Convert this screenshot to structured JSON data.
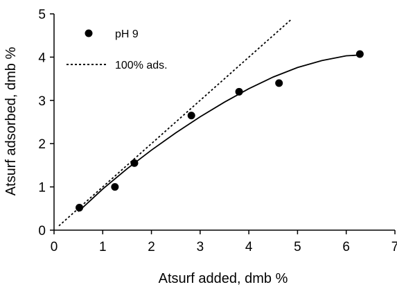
{
  "chart_data": {
    "type": "scatter",
    "xlabel": "Atsurf added, dmb %",
    "ylabel": "Atsurf adsorbed, dmb %",
    "xlim": [
      0,
      7
    ],
    "ylim": [
      0,
      5
    ],
    "xticks": [
      "0",
      "1",
      "2",
      "3",
      "4",
      "5",
      "6",
      "7"
    ],
    "yticks": [
      "0",
      "1",
      "2",
      "3",
      "4",
      "5"
    ],
    "grid": false,
    "legend_position": "top-left",
    "series": [
      {
        "name": "pH 9",
        "kind": "points",
        "marker": "filled-circle",
        "color": "#000000",
        "x": [
          0.52,
          1.25,
          1.65,
          2.82,
          3.8,
          4.62,
          6.28
        ],
        "y": [
          0.52,
          1.0,
          1.55,
          2.65,
          3.2,
          3.4,
          4.07
        ]
      },
      {
        "name": "100% ads.",
        "kind": "line",
        "style": "dotted",
        "color": "#000000",
        "x": [
          0.1,
          4.87
        ],
        "y": [
          0.1,
          4.87
        ]
      },
      {
        "name": "",
        "kind": "line",
        "style": "solid",
        "color": "#000000",
        "x": [
          0.5,
          1.0,
          1.5,
          2.0,
          2.5,
          3.0,
          3.5,
          4.0,
          4.5,
          5.0,
          5.5,
          6.0,
          6.3
        ],
        "y": [
          0.43,
          0.95,
          1.42,
          1.85,
          2.25,
          2.62,
          2.96,
          3.27,
          3.54,
          3.76,
          3.92,
          4.03,
          4.05
        ]
      }
    ]
  }
}
